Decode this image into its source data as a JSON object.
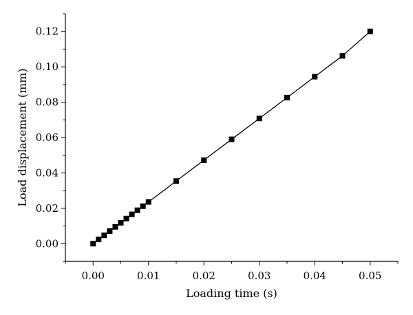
{
  "chart_data": {
    "type": "line",
    "title": "",
    "xlabel": "Loading time (s)",
    "ylabel": "Load displacement (mm)",
    "xlim": [
      -0.005,
      0.055
    ],
    "ylim": [
      -0.01,
      0.13
    ],
    "x_ticks": [
      "0.00",
      "0.01",
      "0.02",
      "0.03",
      "0.04",
      "0.05"
    ],
    "y_ticks": [
      "0.00",
      "0.02",
      "0.04",
      "0.06",
      "0.08",
      "0.10",
      "0.12"
    ],
    "grid": false,
    "legend": "none",
    "marker": "square",
    "color": "#000000",
    "series": [
      {
        "x": [
          0.0,
          0.001,
          0.002,
          0.003,
          0.004,
          0.005,
          0.006,
          0.007,
          0.008,
          0.009,
          0.01,
          0.015,
          0.02,
          0.025,
          0.03,
          0.035,
          0.04,
          0.045,
          0.05
        ],
        "y": [
          0.0,
          0.0024,
          0.0047,
          0.0071,
          0.0095,
          0.0118,
          0.0142,
          0.0166,
          0.0189,
          0.0212,
          0.0236,
          0.0354,
          0.0472,
          0.059,
          0.0708,
          0.0826,
          0.0944,
          0.1062,
          0.12
        ]
      }
    ]
  }
}
